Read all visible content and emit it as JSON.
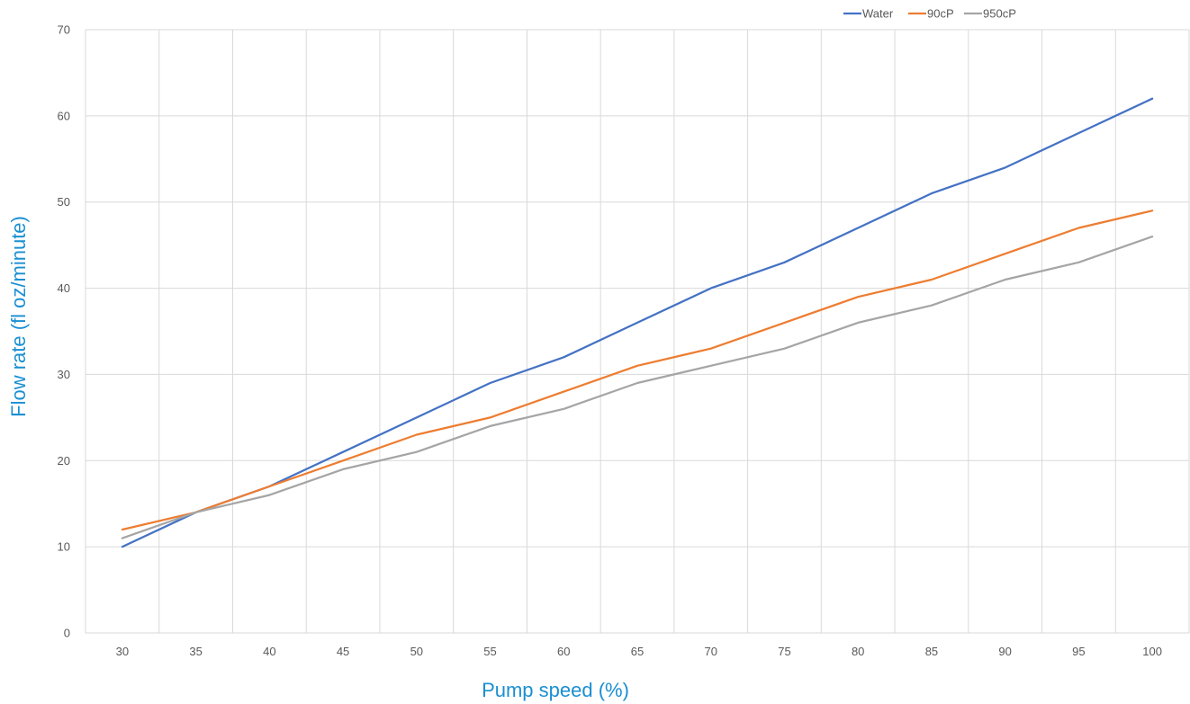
{
  "chart_data": {
    "type": "line",
    "title": "",
    "xlabel": "Pump speed (%)",
    "ylabel": "Flow rate (fl oz/minute)",
    "categories": [
      "30",
      "35",
      "40",
      "45",
      "50",
      "55",
      "60",
      "65",
      "70",
      "75",
      "80",
      "85",
      "90",
      "95",
      "100"
    ],
    "y_ticks": [
      "0",
      "10",
      "20",
      "30",
      "40",
      "50",
      "60",
      "70"
    ],
    "ylim": [
      0,
      70
    ],
    "grid": true,
    "legend_position": "top-right",
    "series": [
      {
        "name": "Water",
        "color": "#4472c4",
        "values": [
          10,
          14,
          17,
          21,
          25,
          29,
          32,
          36,
          40,
          43,
          47,
          51,
          54,
          58,
          62
        ]
      },
      {
        "name": "90cP",
        "color": "#ed7d31",
        "values": [
          12,
          14,
          17,
          20,
          23,
          25,
          28,
          31,
          33,
          36,
          39,
          41,
          44,
          47,
          49
        ]
      },
      {
        "name": "950cP",
        "color": "#a5a5a5",
        "values": [
          11,
          14,
          16,
          19,
          21,
          24,
          26,
          29,
          31,
          33,
          36,
          38,
          41,
          43,
          46
        ]
      }
    ]
  }
}
